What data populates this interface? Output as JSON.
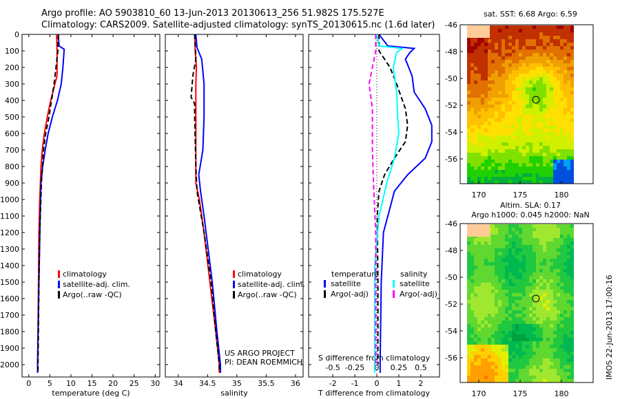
{
  "header": {
    "line1": "Argo profile: AO 5903810_60 13-Jun-2013 20130613_256 51.982S 175.527E",
    "line2": "Climatology: CARS2009. Satellite-adjusted climatology: synTS_20130615.nc (1.6d later)"
  },
  "colors": {
    "climatology": "#ff0000",
    "satellite": "#0000ff",
    "argo": "#000000",
    "sal_satellite": "#00ffff",
    "sal_argo": "#ff00ff"
  },
  "chart_data": [
    {
      "type": "line",
      "xlabel": "temperature (deg C)",
      "ylabel": "",
      "xlim": [
        -1.6,
        31.1
      ],
      "ylim": [
        2075,
        0
      ],
      "xticks": [
        0,
        5,
        10,
        15,
        20,
        25,
        30
      ],
      "yticks": [
        0,
        100,
        200,
        300,
        400,
        500,
        600,
        700,
        800,
        900,
        1000,
        1100,
        1200,
        1300,
        1400,
        1500,
        1600,
        1700,
        1800,
        1900,
        2000
      ],
      "legend": [
        "climatology",
        "satellite-adj. clim.",
        "Argo(..raw -QC)"
      ],
      "series": [
        {
          "name": "climatology",
          "color": "#ff0000",
          "dash": false,
          "points": [
            [
              0,
              6.6
            ],
            [
              100,
              6.7
            ],
            [
              250,
              6.7
            ],
            [
              400,
              5.2
            ],
            [
              500,
              4.4
            ],
            [
              600,
              3.7
            ],
            [
              700,
              3.2
            ],
            [
              800,
              2.9
            ],
            [
              1000,
              2.6
            ],
            [
              1200,
              2.4
            ],
            [
              1500,
              2.3
            ],
            [
              2000,
              2.1
            ],
            [
              2050,
              2.1
            ]
          ]
        },
        {
          "name": "satellite-adj. clim.",
          "color": "#0000ff",
          "dash": false,
          "points": [
            [
              0,
              7.0
            ],
            [
              70,
              7.2
            ],
            [
              90,
              8.4
            ],
            [
              200,
              8.1
            ],
            [
              300,
              7.7
            ],
            [
              400,
              6.8
            ],
            [
              500,
              5.6
            ],
            [
              600,
              4.6
            ],
            [
              700,
              3.9
            ],
            [
              800,
              3.3
            ],
            [
              900,
              2.9
            ],
            [
              1100,
              2.7
            ],
            [
              1500,
              2.4
            ],
            [
              2000,
              2.1
            ],
            [
              2050,
              2.1
            ]
          ]
        },
        {
          "name": "Argo(..raw -QC)",
          "color": "#000000",
          "dash": true,
          "points": [
            [
              0,
              7.0
            ],
            [
              100,
              6.9
            ],
            [
              300,
              6.0
            ],
            [
              400,
              5.4
            ],
            [
              500,
              4.8
            ],
            [
              600,
              4.0
            ],
            [
              700,
              3.5
            ],
            [
              900,
              3.0
            ],
            [
              1200,
              2.6
            ],
            [
              1500,
              2.4
            ],
            [
              2000,
              2.2
            ],
            [
              2040,
              2.2
            ]
          ]
        }
      ]
    },
    {
      "type": "line",
      "xlabel": "salinity",
      "ylabel": "",
      "xlim": [
        33.78,
        36.13
      ],
      "ylim": [
        2075,
        0
      ],
      "xticks": [
        34,
        34.5,
        35,
        35.5,
        36
      ],
      "yticks": [
        0,
        100,
        200,
        300,
        400,
        500,
        600,
        700,
        800,
        900,
        1000,
        1100,
        1200,
        1300,
        1400,
        1500,
        1600,
        1700,
        1800,
        1900,
        2000
      ],
      "legend": [
        "climatology",
        "satellite-adj. clim.",
        " Argo(..raw -QC)"
      ],
      "annotation": [
        "US ARGO PROJECT",
        "PI: DEAN ROEMMICH"
      ],
      "series": [
        {
          "name": "climatology",
          "color": "#ff0000",
          "dash": false,
          "points": [
            [
              0,
              34.28
            ],
            [
              100,
              34.29
            ],
            [
              200,
              34.31
            ],
            [
              300,
              34.3
            ],
            [
              500,
              34.3
            ],
            [
              900,
              34.3
            ],
            [
              1000,
              34.36
            ],
            [
              1200,
              34.44
            ],
            [
              1500,
              34.54
            ],
            [
              1800,
              34.64
            ],
            [
              2000,
              34.7
            ],
            [
              2050,
              34.7
            ]
          ]
        },
        {
          "name": "satellite-adj. clim.",
          "color": "#0000ff",
          "dash": false,
          "points": [
            [
              0,
              34.3
            ],
            [
              80,
              34.32
            ],
            [
              150,
              34.4
            ],
            [
              300,
              34.44
            ],
            [
              500,
              34.44
            ],
            [
              700,
              34.42
            ],
            [
              850,
              34.35
            ],
            [
              950,
              34.38
            ],
            [
              1100,
              34.44
            ],
            [
              1500,
              34.58
            ],
            [
              1800,
              34.66
            ],
            [
              2000,
              34.72
            ],
            [
              2050,
              34.72
            ]
          ]
        },
        {
          "name": "Argo(..raw -QC)",
          "color": "#000000",
          "dash": true,
          "points": [
            [
              0,
              34.28
            ],
            [
              150,
              34.3
            ],
            [
              250,
              34.25
            ],
            [
              380,
              34.22
            ],
            [
              420,
              34.28
            ],
            [
              500,
              34.28
            ],
            [
              800,
              34.3
            ],
            [
              950,
              34.32
            ],
            [
              1200,
              34.44
            ],
            [
              1500,
              34.56
            ],
            [
              1800,
              34.64
            ],
            [
              2000,
              34.7
            ],
            [
              2040,
              34.7
            ]
          ]
        }
      ]
    },
    {
      "type": "line",
      "xlabel": "T difference from climatology",
      "x2label": "S difference from climatology",
      "xlim": [
        -3.1,
        2.85
      ],
      "ylim": [
        2075,
        0
      ],
      "xticks": [
        -2,
        -1,
        0,
        1,
        2
      ],
      "x2ticks": [
        "-0.5",
        "-0.25",
        "0",
        "0.25",
        "0.5"
      ],
      "yticks": [
        0,
        100,
        200,
        300,
        400,
        500,
        600,
        700,
        800,
        900,
        1000,
        1100,
        1200,
        1300,
        1400,
        1500,
        1600,
        1700,
        1800,
        1900,
        2000
      ],
      "legend_titles": [
        "temperature",
        "salinity"
      ],
      "legend": [
        "satellite",
        "Argo(-adj)",
        "satellite",
        "Argo(-adj)"
      ],
      "series": [
        {
          "name": "T satellite",
          "color": "#0000ff",
          "dash": false,
          "points": [
            [
              0,
              0.1
            ],
            [
              70,
              0.5
            ],
            [
              85,
              1.7
            ],
            [
              110,
              1.5
            ],
            [
              150,
              1.3
            ],
            [
              250,
              1.6
            ],
            [
              350,
              1.7
            ],
            [
              450,
              2.2
            ],
            [
              550,
              2.5
            ],
            [
              650,
              2.5
            ],
            [
              750,
              2.2
            ],
            [
              850,
              1.4
            ],
            [
              950,
              0.8
            ],
            [
              1050,
              0.6
            ],
            [
              1200,
              0.3
            ],
            [
              1500,
              0.2
            ],
            [
              2000,
              0.15
            ],
            [
              2050,
              0.15
            ]
          ]
        },
        {
          "name": "T Argo(-adj)",
          "color": "#000000",
          "dash": true,
          "points": [
            [
              0,
              0.1
            ],
            [
              100,
              0.1
            ],
            [
              200,
              0.6
            ],
            [
              300,
              0.9
            ],
            [
              450,
              1.3
            ],
            [
              550,
              1.4
            ],
            [
              650,
              1.3
            ],
            [
              750,
              0.8
            ],
            [
              850,
              0.35
            ],
            [
              950,
              0.1
            ],
            [
              1100,
              0.02
            ],
            [
              1500,
              0.05
            ],
            [
              2000,
              0.05
            ]
          ]
        },
        {
          "name": "S satellite",
          "color": "#00ffff",
          "dash": false,
          "points": [
            [
              0,
              0.0
            ],
            [
              70,
              0.1
            ],
            [
              85,
              1.15
            ],
            [
              110,
              0.9
            ],
            [
              200,
              0.75
            ],
            [
              350,
              0.9
            ],
            [
              500,
              0.95
            ],
            [
              600,
              1.0
            ],
            [
              750,
              0.8
            ],
            [
              900,
              0.45
            ],
            [
              1100,
              0.1
            ],
            [
              1400,
              -0.1
            ],
            [
              2000,
              -0.1
            ],
            [
              2050,
              -0.1
            ]
          ]
        },
        {
          "name": "S Argo(-adj)",
          "color": "#ff00ff",
          "dash": true,
          "points": [
            [
              0,
              -0.05
            ],
            [
              100,
              -0.05
            ],
            [
              200,
              -0.2
            ],
            [
              300,
              -0.35
            ],
            [
              450,
              -0.2
            ],
            [
              700,
              -0.2
            ],
            [
              900,
              -0.15
            ],
            [
              1200,
              -0.05
            ],
            [
              2000,
              -0.05
            ]
          ]
        }
      ]
    }
  ],
  "maps": [
    {
      "title": "sat. SST: 6.68 Argo: 6.59",
      "yticks": [
        "-46",
        "-48",
        "-50",
        "-52",
        "-54",
        "-56"
      ],
      "xticks": [
        "170",
        "175",
        "180"
      ]
    },
    {
      "title1": "Altim. SLA: 0.17",
      "title2": "Argo h1000: 0.045 h2000: NaN",
      "yticks": [
        "-46",
        "-48",
        "-50",
        "-52",
        "-54",
        "-56"
      ],
      "xticks": [
        "170",
        "175",
        "180"
      ]
    }
  ],
  "footer": "IMOS 22-Jun-2013 17:00:16"
}
